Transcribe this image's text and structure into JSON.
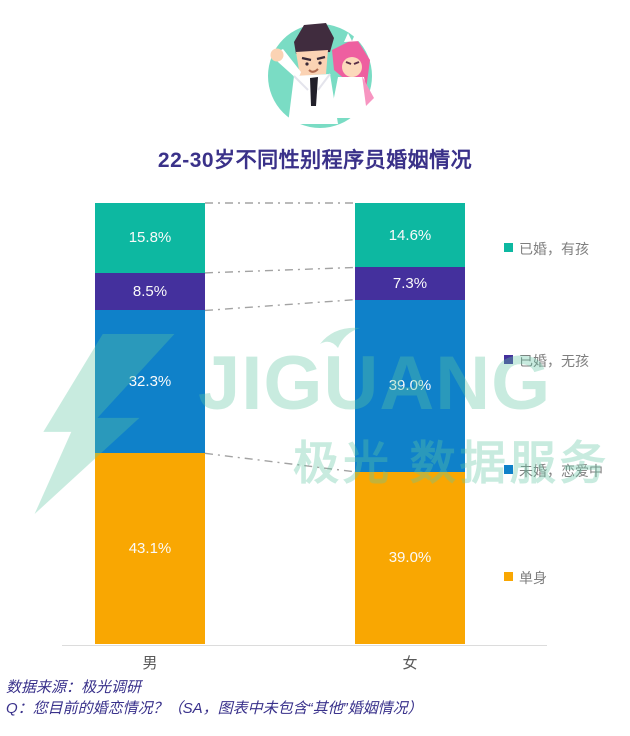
{
  "title": "22-30岁不同性别程序员婚姻情况",
  "chart_data": {
    "type": "bar",
    "subtype": "stacked-percentage-column",
    "title": "22-30岁不同性别程序员婚姻情况",
    "categories": [
      "男",
      "女"
    ],
    "series": [
      {
        "name": "已婚，有孩",
        "color": "#0DB8A1",
        "values": [
          15.8,
          14.6
        ]
      },
      {
        "name": "已婚，无孩",
        "color": "#44309D",
        "values": [
          8.5,
          7.3
        ]
      },
      {
        "name": "未婚，恋爱中",
        "color": "#0F81C9",
        "values": [
          32.3,
          39.0
        ]
      },
      {
        "name": "单身",
        "color": "#F9A702",
        "values": [
          43.1,
          39.0
        ]
      }
    ],
    "value_suffix": "%",
    "stack_order": "top-to-bottom",
    "data_labels": "inside-white",
    "legend_position": "right",
    "connectors": "dashed-gray-between-columns",
    "xlabel": "",
    "ylabel": ""
  },
  "watermark": {
    "brand": "JIGUANG",
    "caption": "极光 数据服务"
  },
  "footer": {
    "source": "数据来源：极光调研",
    "question": "Q：您目前的婚恋情况？（SA，图表中未包含“其他”婚姻情况）"
  }
}
